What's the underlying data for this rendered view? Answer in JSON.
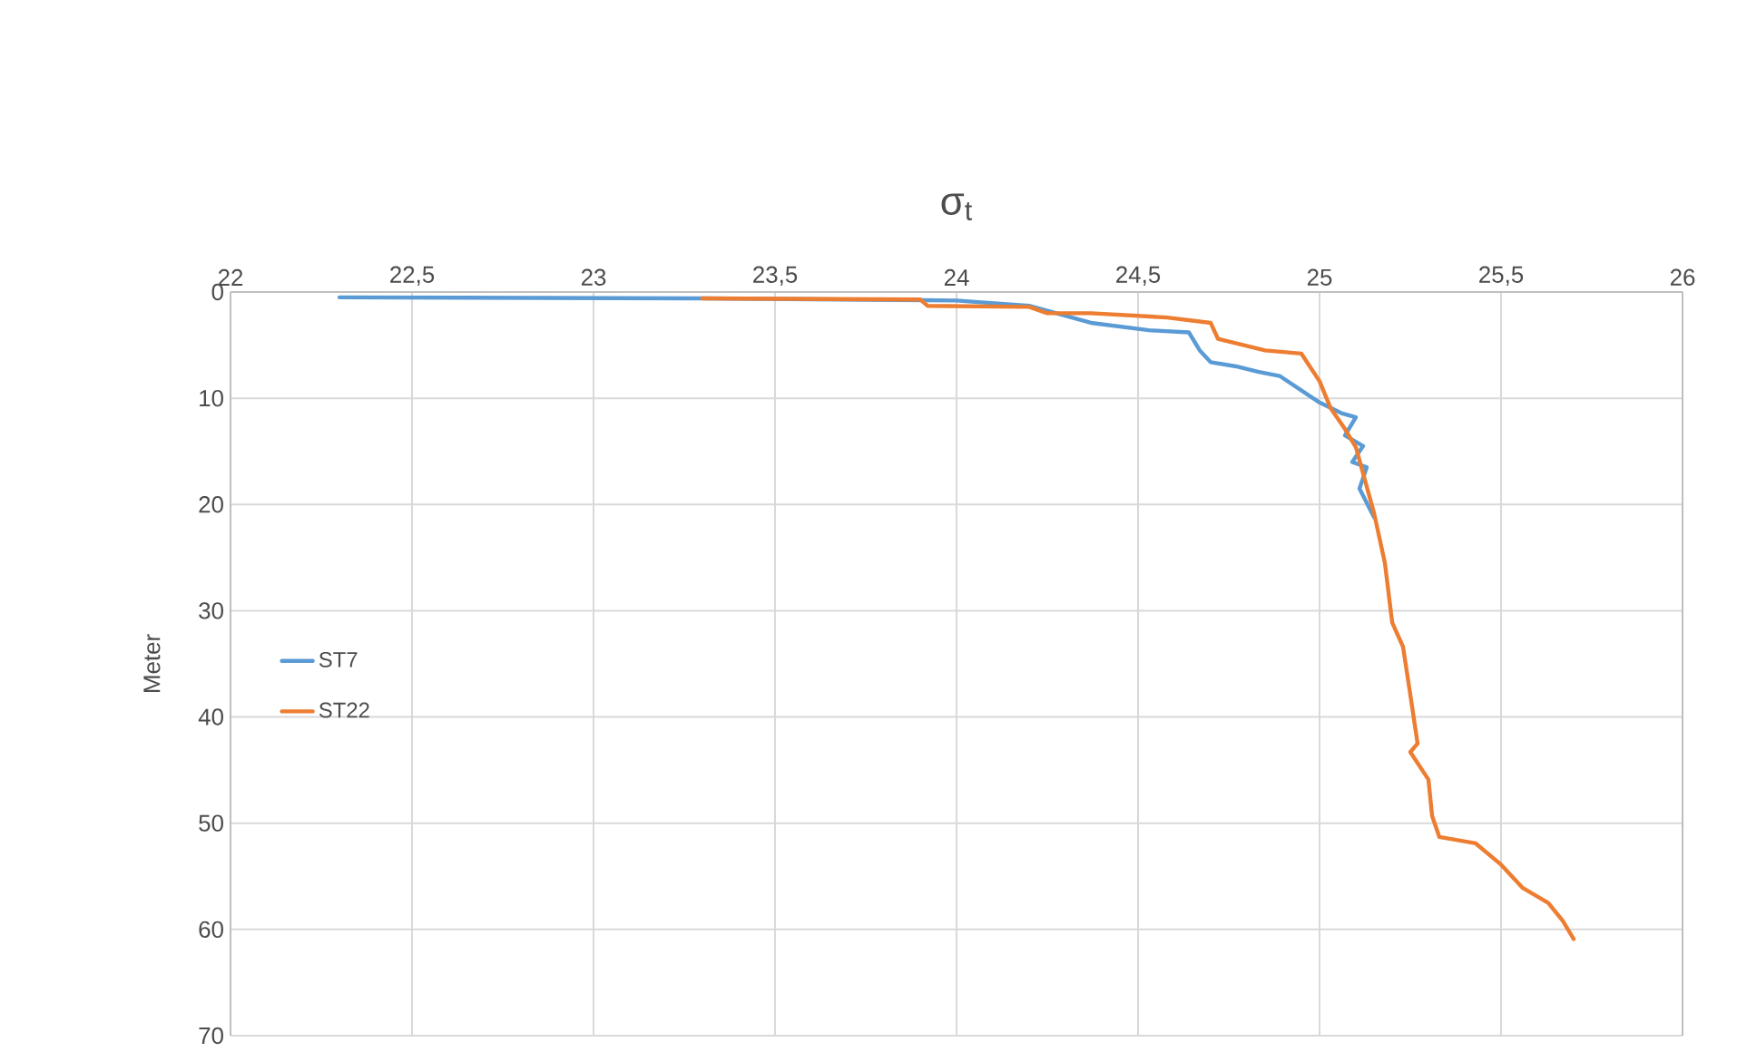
{
  "chart_data": {
    "type": "line",
    "title": "σ$_{t}$",
    "ylabel": "Meter",
    "xlim": [
      22,
      26
    ],
    "xticks": [
      22,
      {
        "value": 22.5,
        "label": "22,5"
      },
      23,
      {
        "value": 23.5,
        "label": "23,5"
      },
      24,
      {
        "value": 24.5,
        "label": "24,5"
      },
      25,
      {
        "value": 25.5,
        "label": "25,5"
      },
      26
    ],
    "ylim": [
      70,
      0
    ],
    "yticks": [
      0,
      10,
      20,
      30,
      40,
      50,
      60,
      70
    ],
    "grid": true,
    "legend": "left",
    "marker": "none",
    "line_style": "solid",
    "series": [
      {
        "name": "ST7",
        "color": "#5b9bd5",
        "x": [
          22.3,
          23.3,
          24.0,
          24.2,
          24.37,
          24.53,
          24.64,
          24.67,
          24.7,
          24.77,
          24.83,
          24.89,
          25.0,
          25.06,
          25.1,
          25.07,
          25.12,
          25.09,
          25.13,
          25.11,
          25.15
        ],
        "values": [
          0.5,
          0.6,
          0.8,
          1.3,
          2.9,
          3.6,
          3.8,
          5.5,
          6.6,
          7.0,
          7.5,
          7.9,
          10.4,
          11.4,
          11.8,
          13.5,
          14.5,
          16.0,
          16.5,
          18.5,
          21.2
        ]
      },
      {
        "name": "ST22",
        "color": "#ed7d31",
        "x": [
          23.3,
          23.9,
          23.92,
          24.2,
          24.25,
          24.37,
          24.58,
          24.7,
          24.72,
          24.85,
          24.95,
          25.0,
          25.03,
          25.07,
          25.1,
          25.15,
          25.18,
          25.2,
          25.23,
          25.25,
          25.27,
          25.25,
          25.3,
          25.31,
          25.33,
          25.43,
          25.5,
          25.56,
          25.63,
          25.67,
          25.7
        ],
        "values": [
          0.6,
          0.7,
          1.3,
          1.4,
          2.0,
          2.0,
          2.4,
          2.9,
          4.4,
          5.5,
          5.8,
          8.4,
          10.9,
          12.9,
          14.6,
          20.8,
          25.5,
          31.1,
          33.4,
          37.9,
          42.5,
          43.3,
          45.9,
          49.3,
          51.3,
          51.9,
          53.9,
          56.1,
          57.5,
          59.2,
          60.9
        ]
      }
    ]
  }
}
